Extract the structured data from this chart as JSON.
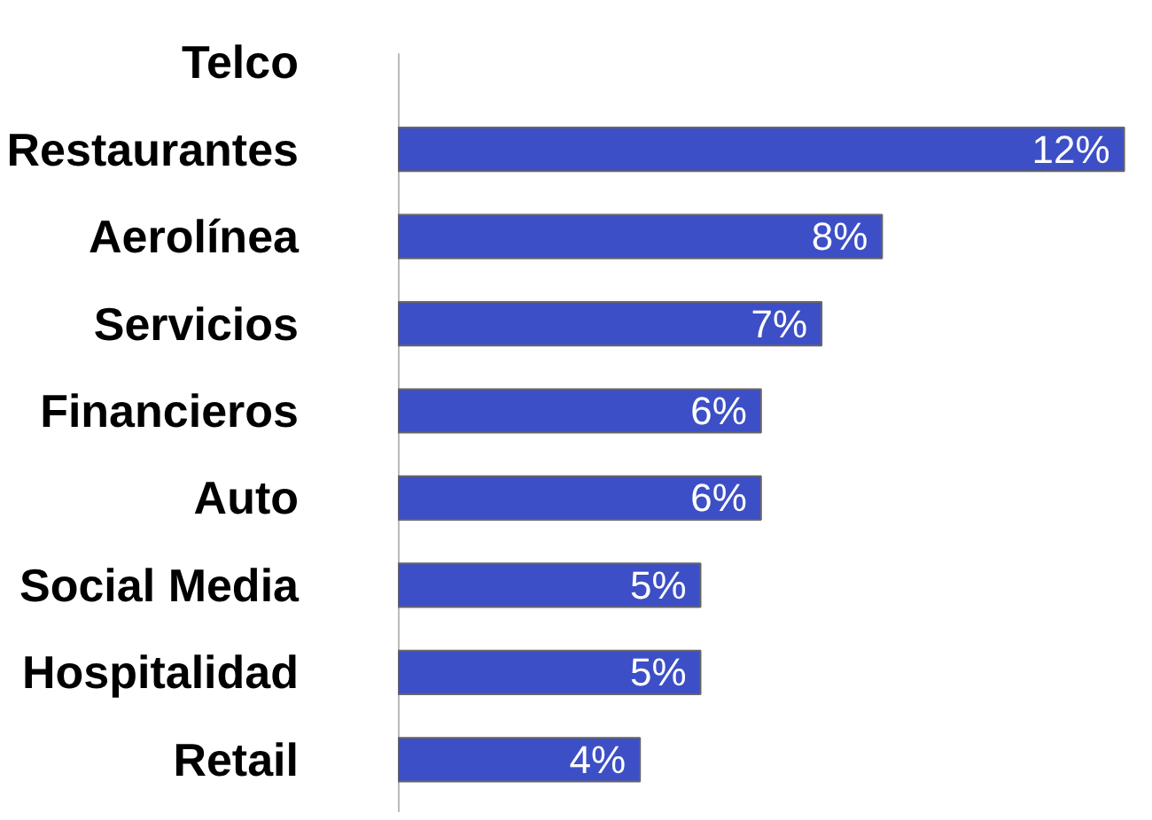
{
  "chart_data": {
    "type": "bar",
    "orientation": "horizontal",
    "categories": [
      "Telco",
      "Restaurantes",
      "Aerolínea",
      "Servicios",
      "Financieros",
      "Auto",
      "Social Media",
      "Hospitalidad",
      "Retail"
    ],
    "values": [
      null,
      12,
      8,
      7,
      6,
      6,
      5,
      5,
      4
    ],
    "value_labels": [
      null,
      "12%",
      "8%",
      "7%",
      "6%",
      "6%",
      "5%",
      "5%",
      "4%"
    ],
    "color": "#3d4fc6",
    "grid": false
  }
}
